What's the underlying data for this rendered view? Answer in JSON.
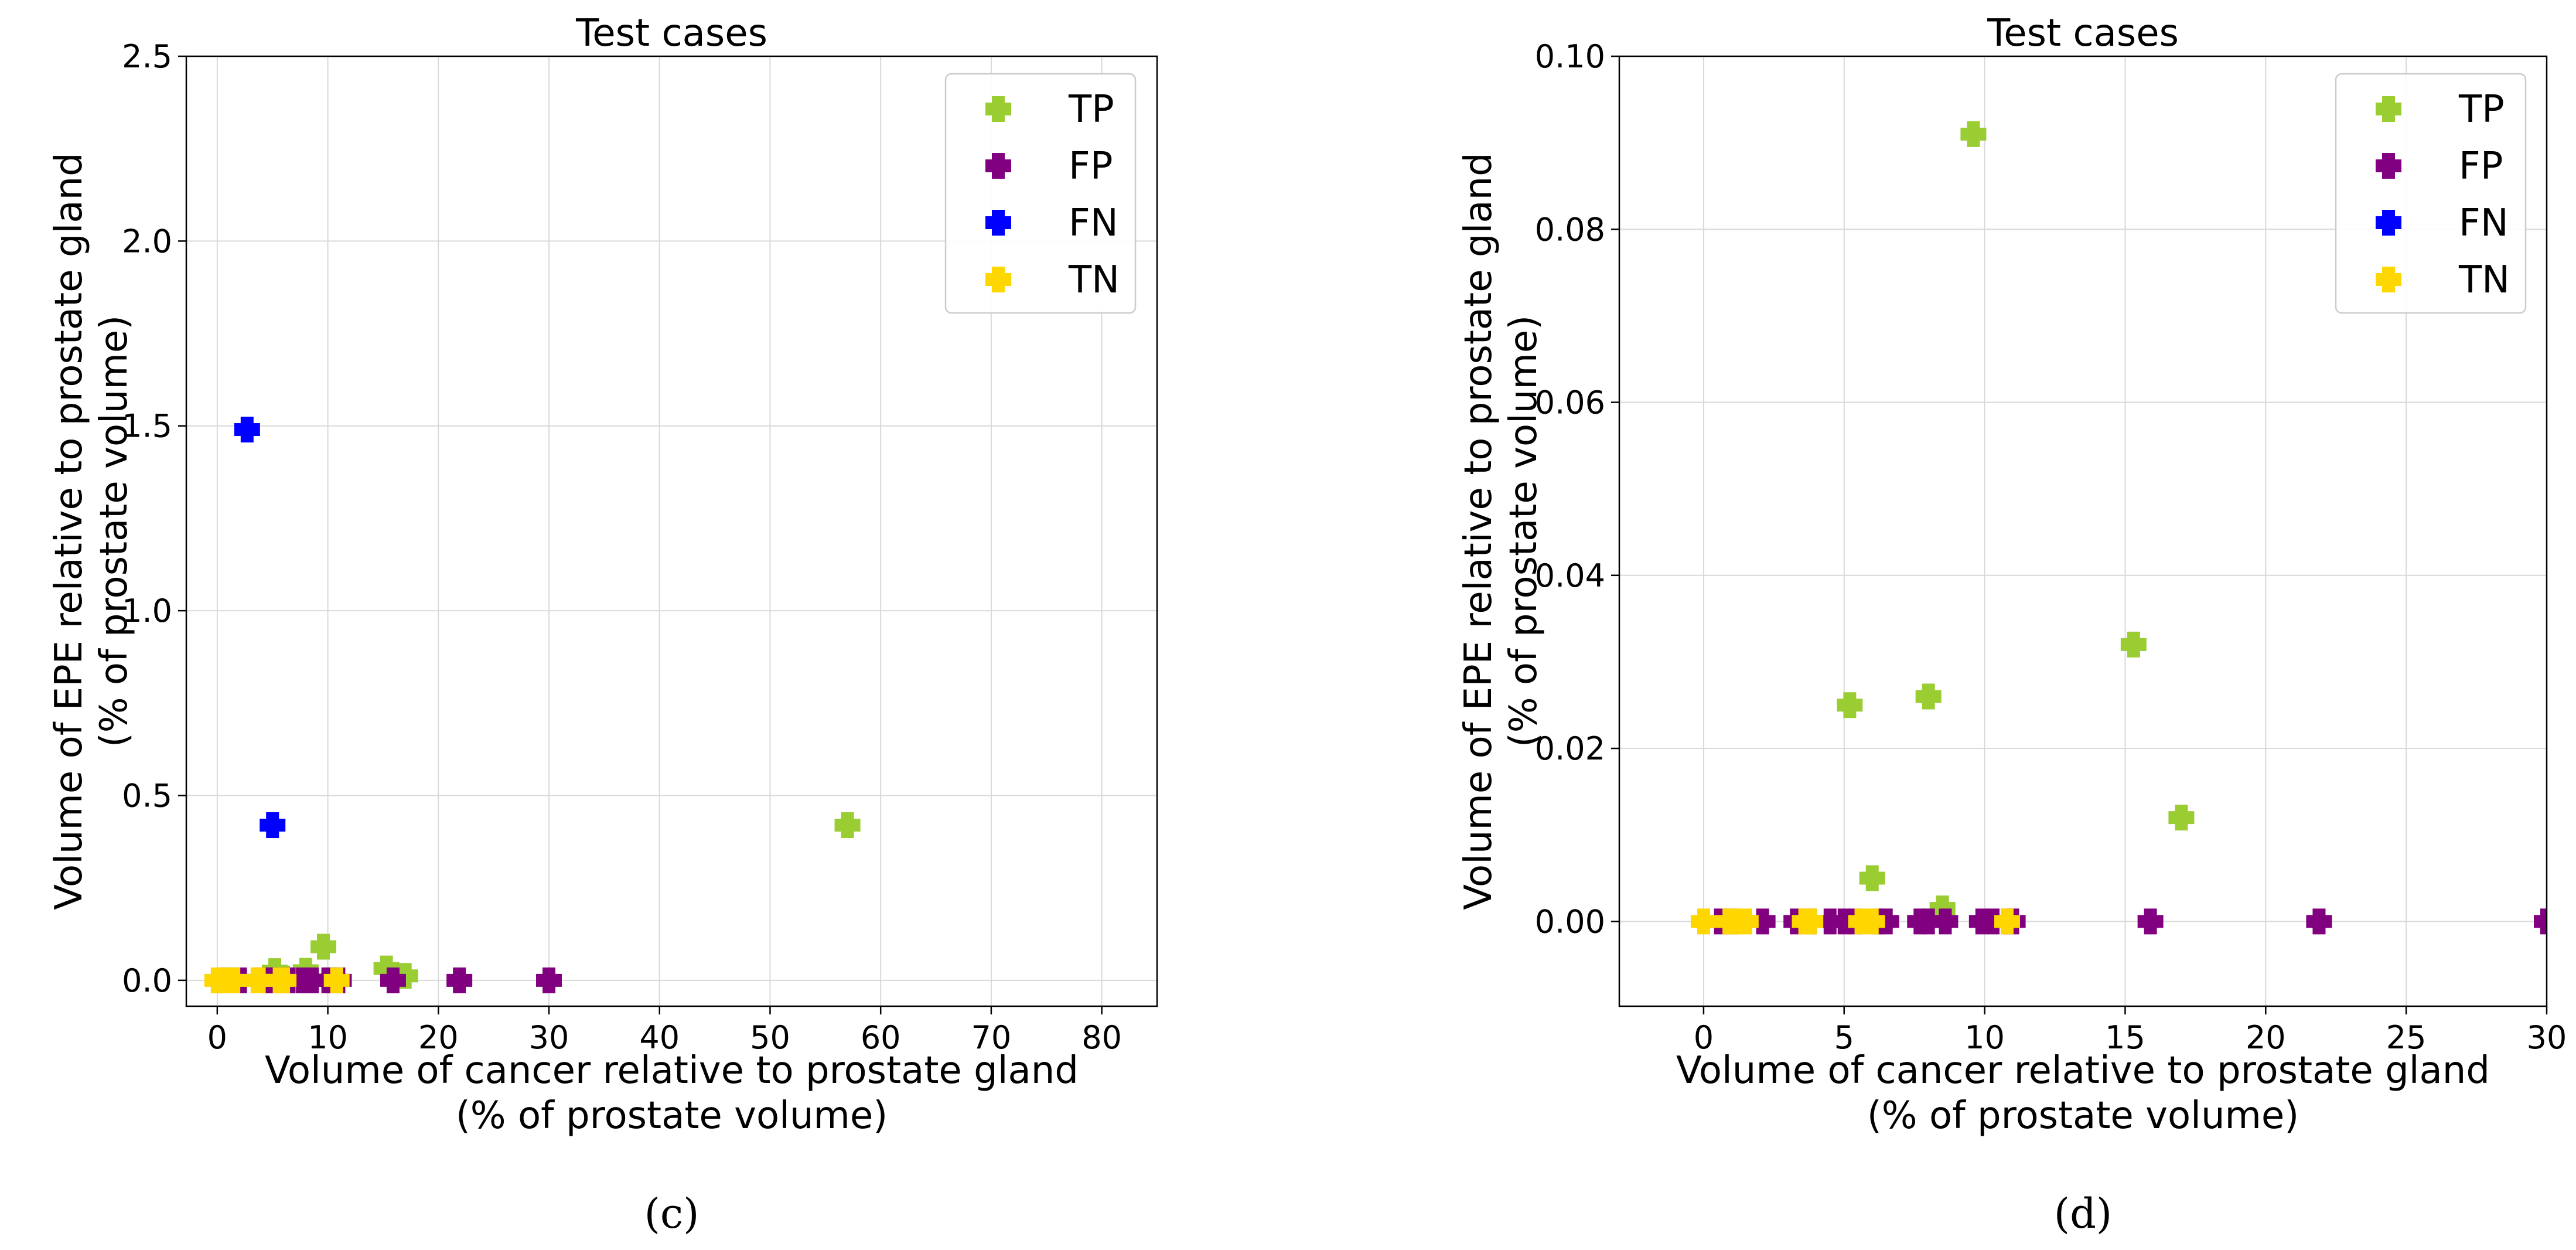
{
  "colors": {
    "TP": "#9acd32",
    "FP": "#800080",
    "FN": "#0000ff",
    "TN": "#ffd700",
    "grid": "#d9d9d9",
    "axis": "#000000",
    "legend_border": "#cccccc"
  },
  "chart_data": [
    {
      "type": "scatter",
      "title": "Test cases",
      "xlabel": [
        "Volume of cancer relative to prostate gland",
        "(% of prostate volume)"
      ],
      "ylabel": [
        "Volume of EPE relative to prostate gland",
        "(% of prostate volume)"
      ],
      "xlim": [
        -2.8,
        85
      ],
      "ylim": [
        -0.07,
        2.5
      ],
      "xticks": [
        0,
        10,
        20,
        30,
        40,
        50,
        60,
        70,
        80
      ],
      "xtick_labels": [
        "0",
        "10",
        "20",
        "30",
        "40",
        "50",
        "60",
        "70",
        "80"
      ],
      "yticks": [
        0,
        0.5,
        1.0,
        1.5,
        2.0,
        2.5
      ],
      "ytick_labels": [
        "0.0",
        "0.5",
        "1.0",
        "1.5",
        "2.0",
        "2.5"
      ],
      "grid": true,
      "legend": "top-right",
      "caption": "(c)",
      "series": [
        {
          "name": "TP",
          "label": "TP",
          "points": [
            [
              5.2,
              0.025
            ],
            [
              6.0,
              0.005
            ],
            [
              8.0,
              0.026
            ],
            [
              8.5,
              0.002
            ],
            [
              9.6,
              0.091
            ],
            [
              15.3,
              0.032
            ],
            [
              17.0,
              0.012
            ],
            [
              57.0,
              0.42
            ]
          ]
        },
        {
          "name": "FP",
          "label": "FP",
          "points": [
            [
              0.6,
              0
            ],
            [
              1.0,
              0
            ],
            [
              2.1,
              0
            ],
            [
              3.8,
              0
            ],
            [
              4.5,
              0
            ],
            [
              5.0,
              0
            ],
            [
              5.4,
              0
            ],
            [
              6.2,
              0
            ],
            [
              6.5,
              0
            ],
            [
              7.7,
              0
            ],
            [
              8.6,
              0
            ],
            [
              10.0,
              0
            ],
            [
              10.3,
              0
            ],
            [
              10.8,
              0
            ],
            [
              11.0,
              0
            ],
            [
              15.9,
              0
            ],
            [
              21.9,
              0
            ],
            [
              30.0,
              0
            ]
          ]
        },
        {
          "name": "FN",
          "label": "FN",
          "points": [
            [
              2.7,
              1.49
            ],
            [
              5.0,
              0.42
            ]
          ]
        },
        {
          "name": "TN",
          "label": "TN",
          "points": [
            [
              0.0,
              0
            ],
            [
              0.9,
              0
            ],
            [
              1.2,
              0
            ],
            [
              1.5,
              0
            ],
            [
              3.6,
              0
            ],
            [
              3.8,
              0
            ],
            [
              5.6,
              0
            ],
            [
              6.0,
              0
            ],
            [
              10.8,
              0
            ]
          ]
        }
      ]
    },
    {
      "type": "scatter",
      "title": "Test cases",
      "xlabel": [
        "Volume of cancer relative to prostate gland",
        "(% of prostate volume)"
      ],
      "ylabel": [
        "Volume of EPE relative to prostate gland",
        "(% of prostate volume)"
      ],
      "xlim": [
        -3,
        30
      ],
      "ylim": [
        -0.0098,
        0.1
      ],
      "xticks": [
        0,
        5,
        10,
        15,
        20,
        25,
        30
      ],
      "xtick_labels": [
        "0",
        "5",
        "10",
        "15",
        "20",
        "25",
        "30"
      ],
      "yticks": [
        0,
        0.02,
        0.04,
        0.06,
        0.08,
        0.1
      ],
      "ytick_labels": [
        "0.00",
        "0.02",
        "0.04",
        "0.06",
        "0.08",
        "0.10"
      ],
      "grid": true,
      "legend": "top-right",
      "caption": "(d)",
      "series": [
        {
          "name": "TP",
          "label": "TP",
          "points": [
            [
              5.2,
              0.025
            ],
            [
              6.0,
              0.005
            ],
            [
              8.0,
              0.026
            ],
            [
              8.5,
              0.0015
            ],
            [
              9.6,
              0.091
            ],
            [
              15.3,
              0.032
            ],
            [
              17.0,
              0.012
            ]
          ]
        },
        {
          "name": "FP",
          "label": "FP",
          "points": [
            [
              0.6,
              0
            ],
            [
              1.0,
              0
            ],
            [
              2.1,
              0
            ],
            [
              3.3,
              0
            ],
            [
              3.8,
              0
            ],
            [
              4.5,
              0
            ],
            [
              5.0,
              0
            ],
            [
              5.4,
              0
            ],
            [
              6.2,
              0
            ],
            [
              6.5,
              0
            ],
            [
              7.7,
              0
            ],
            [
              8.0,
              0
            ],
            [
              8.6,
              0
            ],
            [
              9.9,
              0
            ],
            [
              10.3,
              0
            ],
            [
              10.8,
              0
            ],
            [
              11.0,
              0
            ],
            [
              15.9,
              0
            ],
            [
              21.9,
              0
            ],
            [
              30.0,
              0
            ]
          ]
        },
        {
          "name": "FN",
          "label": "FN",
          "points": []
        },
        {
          "name": "TN",
          "label": "TN",
          "points": [
            [
              0.0,
              0
            ],
            [
              0.9,
              0
            ],
            [
              1.2,
              0
            ],
            [
              1.5,
              0
            ],
            [
              3.6,
              0
            ],
            [
              3.8,
              0
            ],
            [
              5.6,
              0
            ],
            [
              6.0,
              0
            ],
            [
              10.8,
              0
            ]
          ]
        }
      ]
    }
  ]
}
